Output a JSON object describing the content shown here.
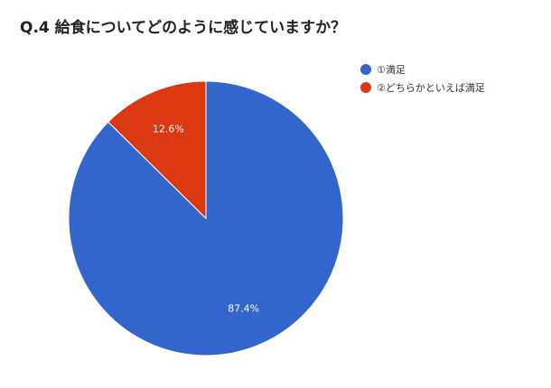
{
  "chart_data": {
    "type": "pie",
    "title": "Q.4 給食についてどのように感じていますか？",
    "slices": [
      {
        "label": "①満足",
        "value": 87.4,
        "display": "87.4%",
        "color": "#3366cc"
      },
      {
        "label": "②どちらかといえば満足",
        "value": 12.6,
        "display": "12.6%",
        "color": "#dc3912"
      }
    ],
    "legend_position": "right"
  }
}
